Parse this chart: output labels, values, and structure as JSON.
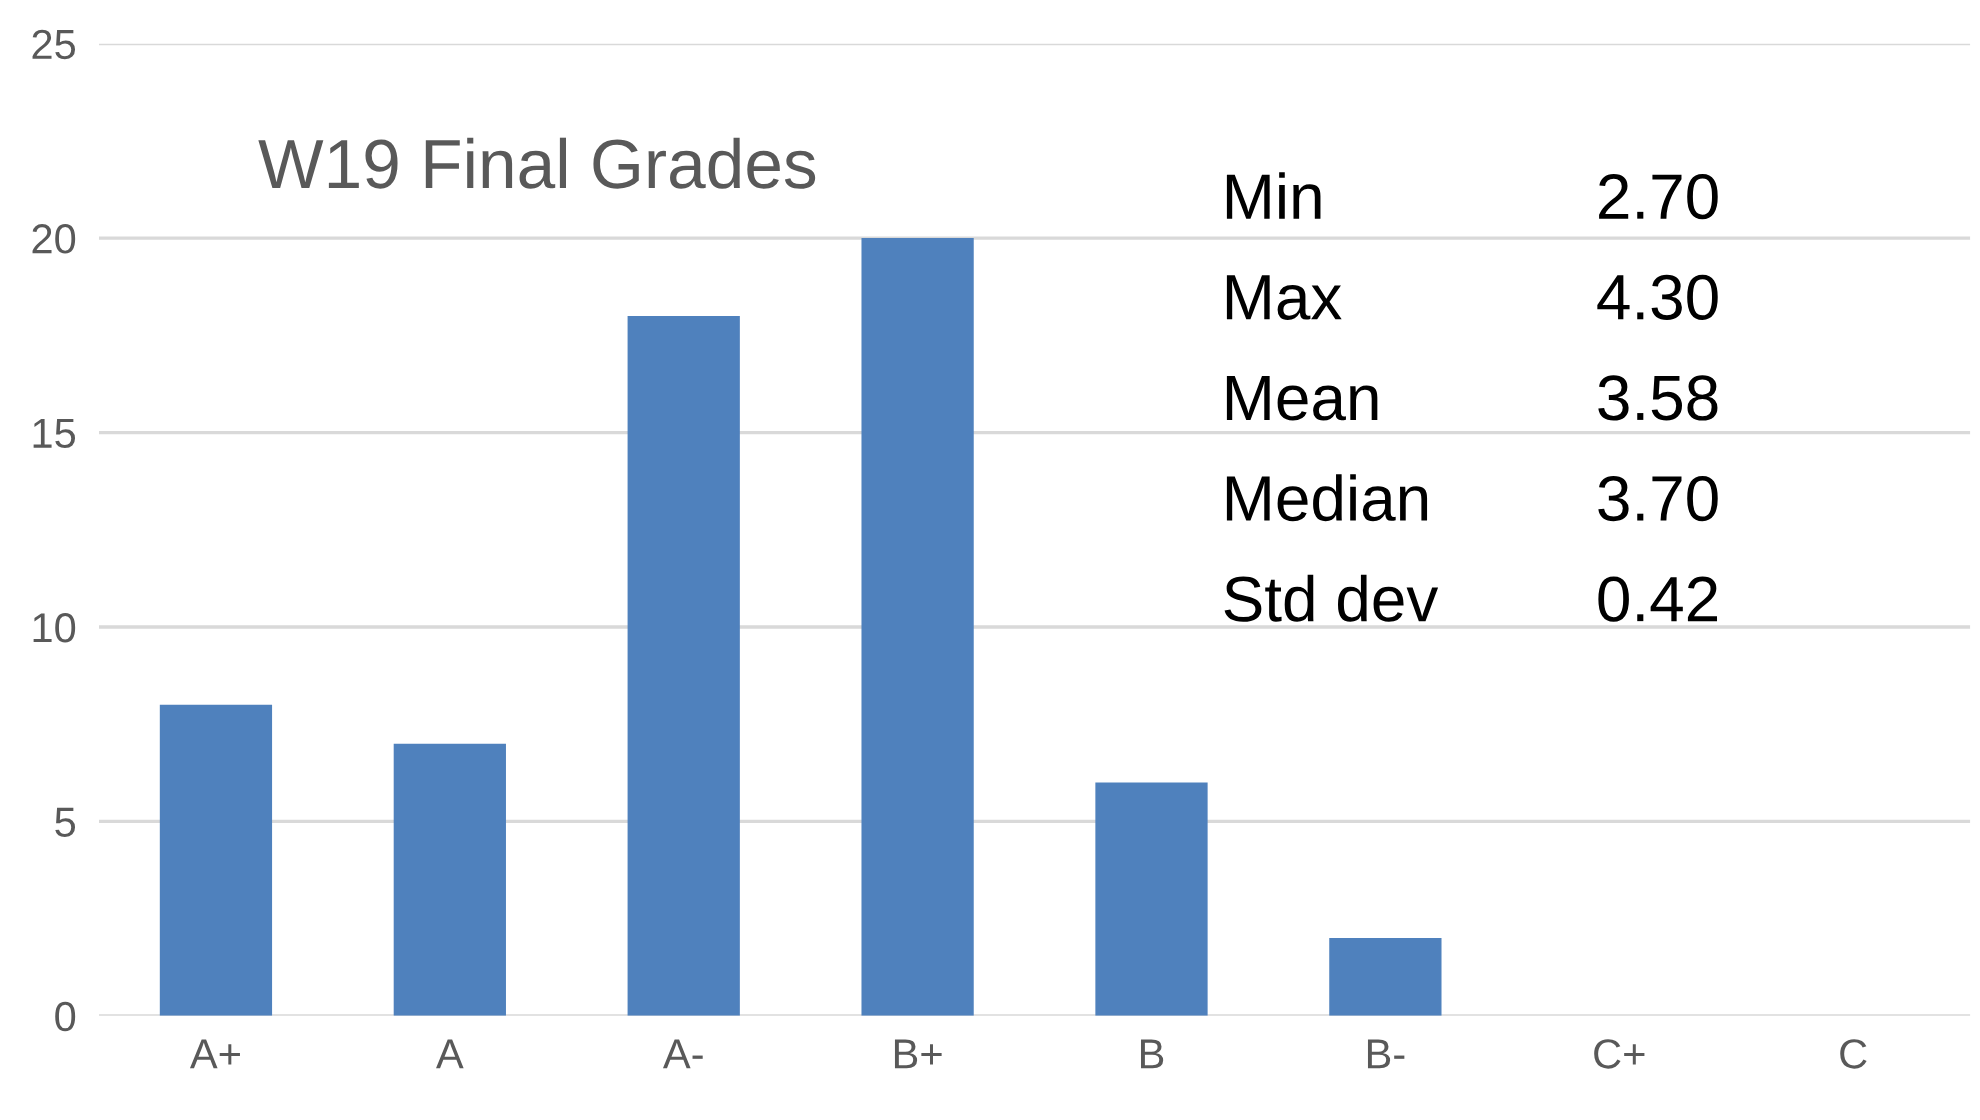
{
  "chart_data": {
    "type": "bar",
    "title": "W19 Final Grades",
    "categories": [
      "A+",
      "A",
      "A-",
      "B+",
      "B",
      "B-",
      "C+",
      "C"
    ],
    "values": [
      8,
      7,
      18,
      20,
      6,
      2,
      0,
      0
    ],
    "color": "#4f81bd",
    "ylim": [
      0,
      25
    ],
    "yticks": [
      0,
      5,
      10,
      15,
      20,
      25
    ],
    "grid": "y",
    "annotations": [
      "Min 2.70",
      "Max 4.30",
      "Mean 3.58",
      "Median 3.70",
      "Std dev 0.42"
    ]
  }
}
